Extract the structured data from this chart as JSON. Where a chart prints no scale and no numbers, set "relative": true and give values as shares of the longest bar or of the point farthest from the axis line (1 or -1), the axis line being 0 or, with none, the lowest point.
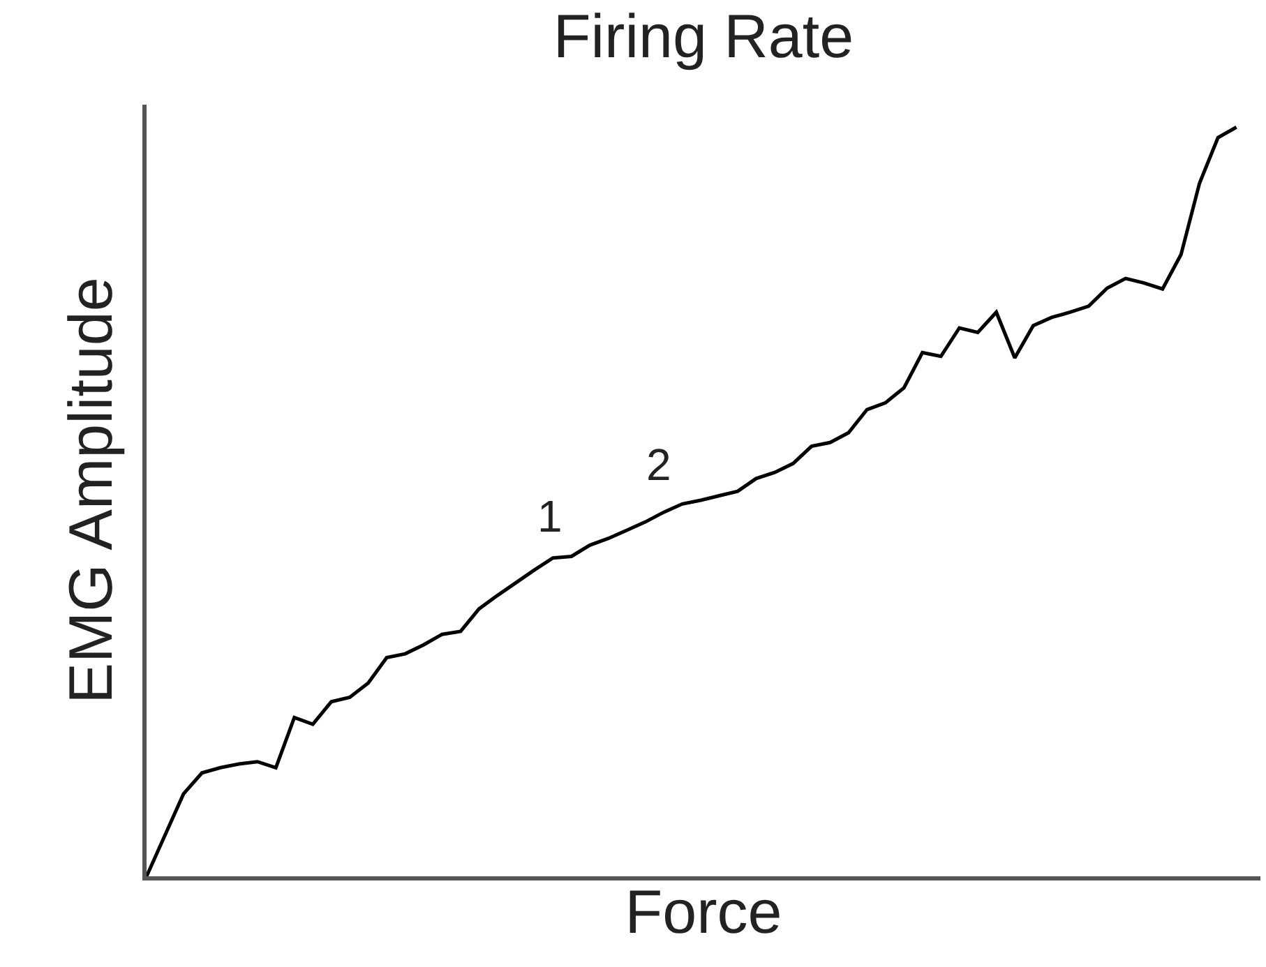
{
  "chart_data": {
    "type": "line",
    "title": "Firing Rate",
    "xlabel": "Force",
    "ylabel": "EMG Amplitude",
    "relative": true,
    "tick_labels": false,
    "marker": "none",
    "line_style": "solid",
    "annotations": [
      "1",
      "2"
    ],
    "categories": [
      null,
      null,
      null,
      null,
      null,
      null,
      null,
      null,
      null,
      null,
      null,
      null,
      null,
      null,
      null,
      null,
      null,
      null,
      null,
      null,
      null,
      null,
      null,
      null,
      null,
      null,
      null,
      null,
      null,
      null,
      null,
      null,
      null,
      null,
      null,
      null,
      null,
      null,
      null,
      null,
      null,
      null,
      null,
      null,
      null,
      null,
      null,
      null,
      null,
      null,
      null,
      null,
      null,
      null,
      null,
      null,
      null,
      null,
      null,
      null
    ],
    "series": [
      {
        "color": "#000000",
        "values": [
          0,
          0.055,
          0.11,
          0.138,
          0.145,
          0.15,
          0.153,
          0.145,
          0.212,
          0.203,
          0.233,
          0.239,
          0.258,
          0.292,
          0.297,
          0.309,
          0.323,
          0.327,
          0.357,
          0.375,
          0.392,
          0.409,
          0.425,
          0.427,
          0.442,
          0.451,
          0.462,
          0.473,
          0.486,
          0.497,
          0.502,
          0.508,
          0.514,
          0.531,
          0.539,
          0.551,
          0.574,
          0.579,
          0.592,
          0.623,
          0.632,
          0.652,
          0.699,
          0.694,
          0.732,
          0.726,
          0.753,
          0.692,
          0.735,
          0.746,
          0.753,
          0.761,
          0.785,
          0.798,
          0.792,
          0.784,
          0.83,
          0.925,
          0.986,
          1
        ]
      }
    ]
  }
}
